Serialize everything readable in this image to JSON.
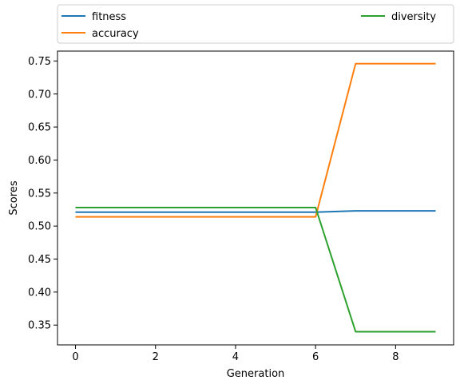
{
  "chart_data": {
    "type": "line",
    "title": "",
    "xlabel": "Generation",
    "ylabel": "Scores",
    "xlim": [
      -0.45,
      9.45
    ],
    "ylim": [
      0.32,
      0.765
    ],
    "xticks": [
      0,
      2,
      4,
      6,
      8
    ],
    "yticks": [
      0.35,
      0.4,
      0.45,
      0.5,
      0.55,
      0.6,
      0.65,
      0.7,
      0.75
    ],
    "grid": false,
    "legend_placement": "top, above plot",
    "x": [
      0,
      1,
      2,
      3,
      4,
      5,
      6,
      7,
      8,
      9
    ],
    "series": [
      {
        "name": "fitness",
        "color": "#1f77b4",
        "values": [
          0.521,
          0.521,
          0.521,
          0.521,
          0.521,
          0.521,
          0.521,
          0.523,
          0.523,
          0.523
        ]
      },
      {
        "name": "accuracy",
        "color": "#ff7f0e",
        "values": [
          0.514,
          0.514,
          0.514,
          0.514,
          0.514,
          0.514,
          0.514,
          0.746,
          0.746,
          0.746
        ]
      },
      {
        "name": "diversity",
        "color": "#2ca02c",
        "values": [
          0.528,
          0.528,
          0.528,
          0.528,
          0.528,
          0.528,
          0.528,
          0.34,
          0.34,
          0.34
        ]
      }
    ]
  }
}
